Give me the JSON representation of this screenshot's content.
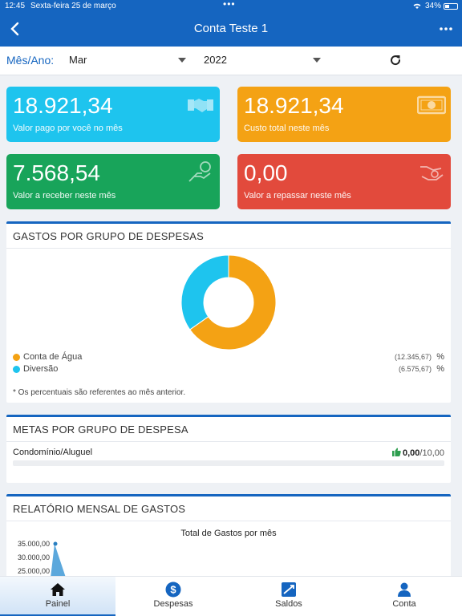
{
  "status": {
    "time": "12:45",
    "date": "Sexta-feira 25 de março",
    "battery": "34%"
  },
  "header": {
    "title": "Conta Teste 1",
    "back_icon": "chevron-left-icon",
    "menu_icon": "more-horizontal-icon"
  },
  "filters": {
    "label": "Mês/Ano:",
    "month": "Mar",
    "year": "2022",
    "refresh_icon": "refresh-icon"
  },
  "cards": [
    {
      "value": "18.921,34",
      "label": "Valor pago por você no mês",
      "icon": "handshake-icon",
      "color": "#1ec4ee"
    },
    {
      "value": "18.921,34",
      "label": "Custo total neste mês",
      "icon": "banknote-icon",
      "color": "#f4a214"
    },
    {
      "value": "7.568,54",
      "label": "Valor a receber neste mês",
      "icon": "hand-coin-icon",
      "color": "#18a45a"
    },
    {
      "value": "0,00",
      "label": "Valor a repassar neste mês",
      "icon": "hand-giving-coin-icon",
      "color": "#e24a3c"
    }
  ],
  "expenses_panel": {
    "title": "GASTOS POR GRUPO DE DESPESAS",
    "legend": [
      {
        "name": "Conta de Água",
        "amount": "(12.345,67)",
        "pct": "%",
        "color": "#f4a214"
      },
      {
        "name": "Diversão",
        "amount": "(6.575,67)",
        "pct": "%",
        "color": "#1ec4ee"
      }
    ],
    "note": "* Os percentuais são referentes ao mês anterior."
  },
  "goals_panel": {
    "title": "METAS POR GRUPO DE DESPESA",
    "items": [
      {
        "name": "Condomínio/Aluguel",
        "current": "0,00",
        "max": "/10,00",
        "progress": 0
      }
    ]
  },
  "report_panel": {
    "title": "RELATÓRIO MENSAL DE GASTOS",
    "chart_title": "Total de Gastos por mês",
    "y_ticks": [
      "35.000,00",
      "30.000,00",
      "25.000,00"
    ]
  },
  "chart_data": [
    {
      "type": "pie",
      "labels": [
        "Conta de Água",
        "Diversão"
      ],
      "values": [
        12345.67,
        6575.67
      ],
      "colors": [
        "#f4a214",
        "#1ec4ee"
      ]
    },
    {
      "type": "area",
      "title": "Total de Gastos por mês",
      "y_ticks": [
        35000,
        30000,
        25000
      ],
      "first_point": 35000
    }
  ],
  "tabs": [
    {
      "label": "Painel",
      "icon": "home-icon",
      "active": true
    },
    {
      "label": "Despesas",
      "icon": "dollar-circle-icon",
      "active": false
    },
    {
      "label": "Saldos",
      "icon": "balance-chart-icon",
      "active": false
    },
    {
      "label": "Conta",
      "icon": "user-icon",
      "active": false
    }
  ]
}
